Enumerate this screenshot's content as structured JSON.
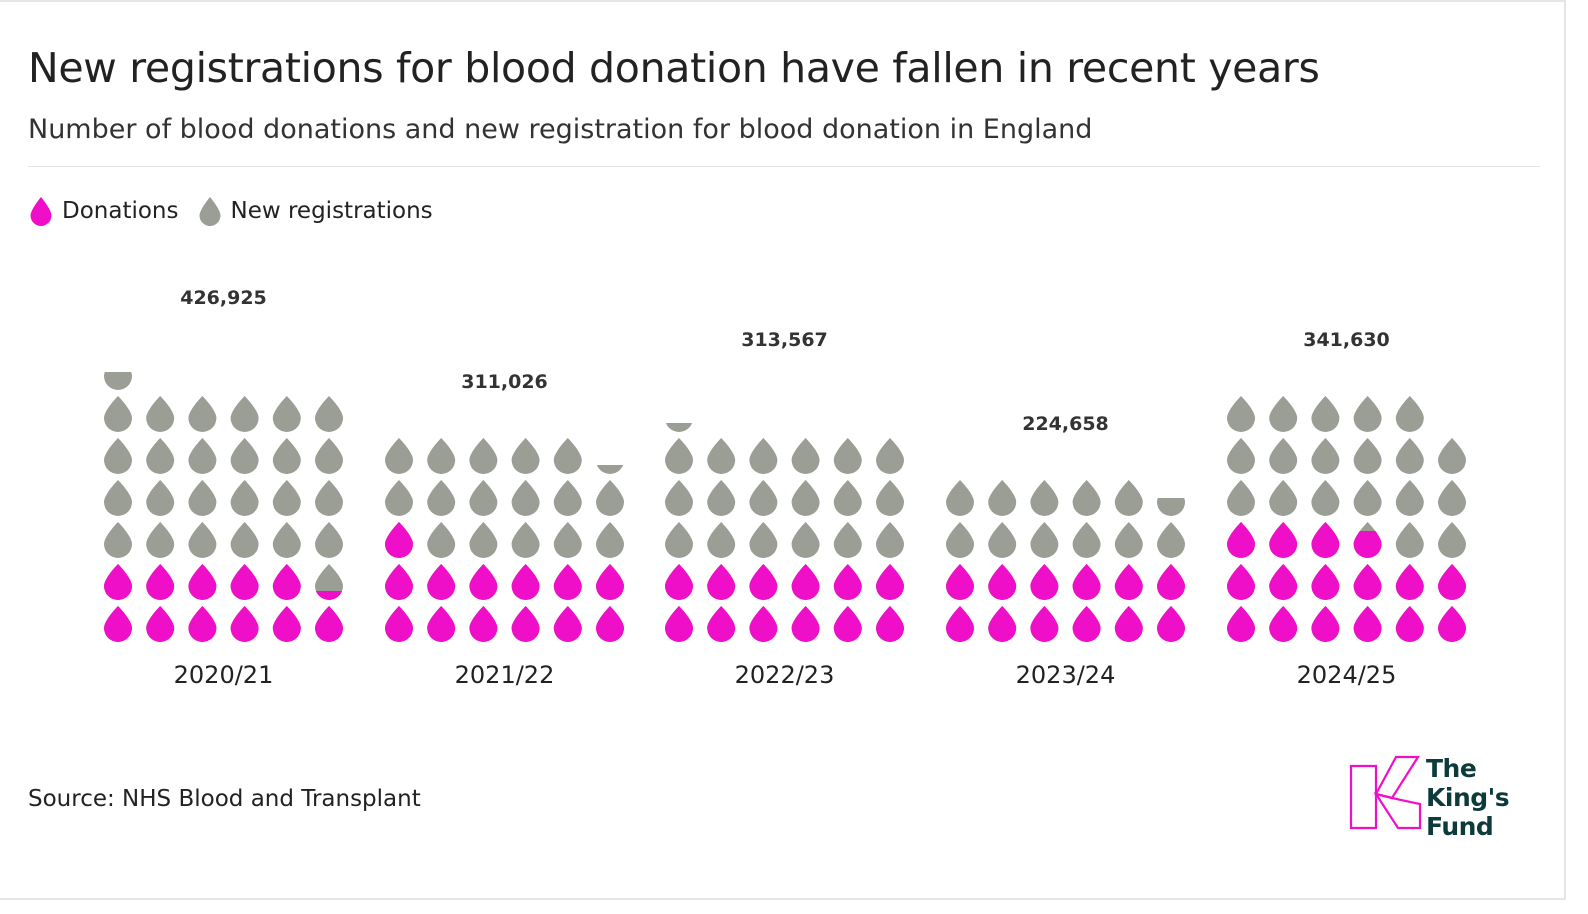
{
  "title": "New registrations for blood donation have fallen in recent years",
  "subtitle": "Number of blood donations and new registration for blood donation in England",
  "legend": {
    "donations": "Donations",
    "registrations": "New registrations"
  },
  "source": "Source: NHS Blood and Transplant",
  "logo": {
    "line1": "The",
    "line2": "King's",
    "line3": "Fund"
  },
  "colors": {
    "donations": "#f00fc8",
    "registrations": "#9a9e95"
  },
  "chart_data": {
    "type": "pictogram",
    "categories": [
      "2020/21",
      "2021/22",
      "2022/23",
      "2023/24",
      "2024/25"
    ],
    "series": [
      {
        "name": "Donations",
        "drops": [
          11.25,
          13.0,
          12.0,
          12.0,
          15.75
        ]
      },
      {
        "name": "New registrations",
        "drops": [
          25.25,
          16.25,
          18.25,
          11.5,
          19.25
        ]
      }
    ],
    "value_labels": [
      "426,925",
      "311,026",
      "313,567",
      "224,658",
      "341,630"
    ],
    "drops_per_row": 6
  }
}
